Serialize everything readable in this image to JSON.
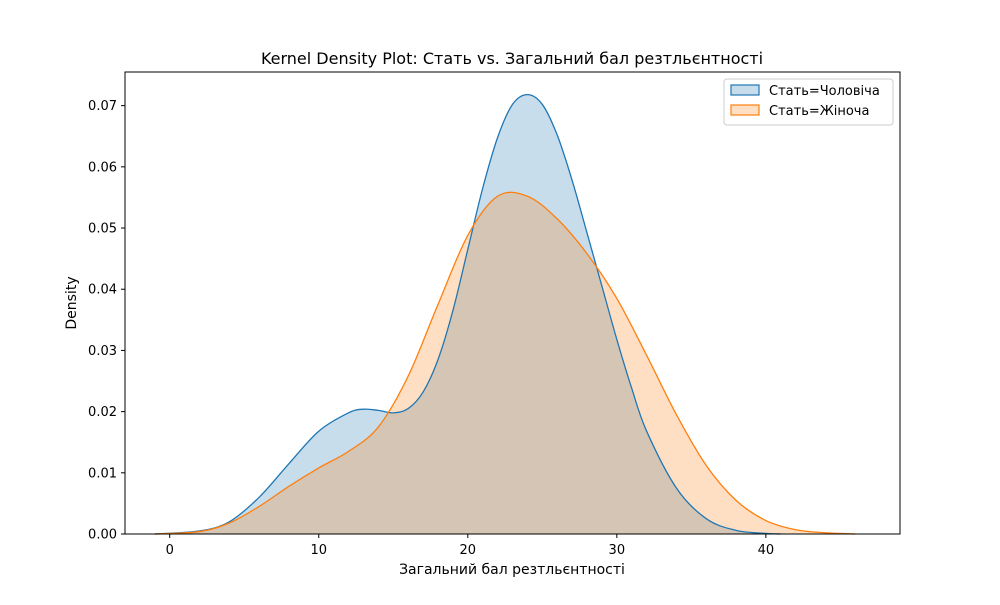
{
  "chart_data": {
    "type": "area",
    "title": "Kernel Density Plot: Стать vs. Загальний бал резтльєнтності",
    "xlabel": "Загальний бал резтльєнтності",
    "ylabel": "Density",
    "xlim": [
      -3,
      49
    ],
    "ylim": [
      0,
      0.0755
    ],
    "xticks": [
      0,
      10,
      20,
      30,
      40
    ],
    "yticks": [
      0,
      0.01,
      0.02,
      0.03,
      0.04,
      0.05,
      0.06,
      0.07
    ],
    "grid": false,
    "legend_position": "top-right",
    "series": [
      {
        "name": "Стать=Чоловіча",
        "color": "#1f77b4",
        "x": [
          -1,
          2,
          4,
          6,
          8,
          10,
          12,
          13,
          14,
          15,
          16,
          17,
          18,
          19,
          20,
          21,
          22,
          23,
          24,
          25,
          26,
          27,
          28,
          29,
          30,
          31,
          32,
          34,
          36,
          38,
          40,
          41
        ],
        "y": [
          0.0,
          0.0005,
          0.002,
          0.006,
          0.0115,
          0.0168,
          0.0198,
          0.0204,
          0.0202,
          0.0198,
          0.0205,
          0.0232,
          0.0285,
          0.0365,
          0.0465,
          0.0565,
          0.0648,
          0.0702,
          0.0718,
          0.0702,
          0.0652,
          0.0578,
          0.0492,
          0.0405,
          0.0318,
          0.0238,
          0.0168,
          0.0075,
          0.0025,
          0.0006,
          0.0001,
          0.0
        ]
      },
      {
        "name": "Стать=Жіноча",
        "color": "#ff7f0e",
        "x": [
          -1,
          2,
          4,
          6,
          8,
          10,
          12,
          14,
          16,
          18,
          20,
          22,
          24,
          26,
          28,
          30,
          32,
          34,
          36,
          38,
          40,
          42,
          44,
          46
        ],
        "y": [
          0.0,
          0.0004,
          0.0018,
          0.0045,
          0.0078,
          0.0108,
          0.0135,
          0.0175,
          0.0258,
          0.0375,
          0.0488,
          0.0552,
          0.0552,
          0.0515,
          0.0458,
          0.0385,
          0.0292,
          0.0195,
          0.0112,
          0.0055,
          0.0022,
          0.0007,
          0.0002,
          0.0
        ]
      }
    ]
  }
}
